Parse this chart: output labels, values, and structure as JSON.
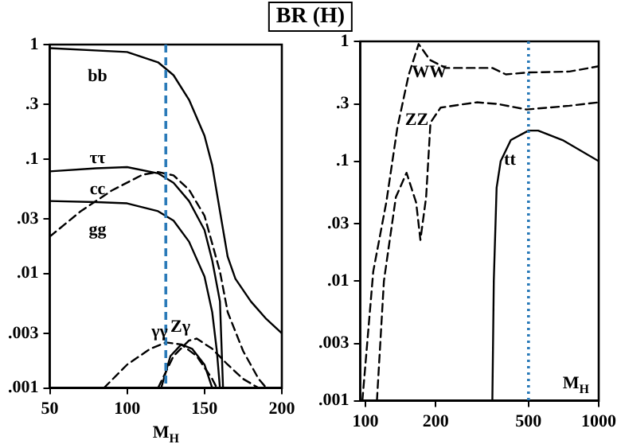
{
  "chart_data": [
    {
      "type": "line",
      "title": "BR (H)",
      "xlabel": "M$_{H}$",
      "log": "y",
      "xlim": [
        50,
        200
      ],
      "xticks": [
        50,
        100,
        150,
        200
      ],
      "ylim": [
        0.001,
        1
      ],
      "yticks": [
        {
          "value": 0.001,
          "label": ".001"
        },
        {
          "value": 0.003,
          "label": ".003"
        },
        {
          "value": 0.01,
          "label": ".01"
        },
        {
          "value": 0.03,
          "label": ".03"
        },
        {
          "value": 0.1,
          "label": ".1"
        },
        {
          "value": 0.3,
          "label": ".3"
        },
        1
      ],
      "ref_lines": [
        {
          "axis": "x",
          "value": 125,
          "color": "#2a7ab8",
          "line_style": "dashed"
        }
      ],
      "series": [
        {
          "name": "bb",
          "color": "#000000",
          "line_style": "solid",
          "x": [
            50,
            100,
            120,
            130,
            140,
            150,
            155,
            160,
            165,
            170,
            180,
            190,
            200
          ],
          "values": [
            0.93,
            0.86,
            0.7,
            0.54,
            0.33,
            0.16,
            0.088,
            0.035,
            0.014,
            0.009,
            0.0057,
            0.004,
            0.003
          ]
        },
        {
          "name": "ττ",
          "color": "#000000",
          "line_style": "solid",
          "x": [
            50,
            80,
            100,
            120,
            130,
            140,
            150,
            155,
            160,
            162
          ],
          "values": [
            0.078,
            0.083,
            0.085,
            0.075,
            0.062,
            0.043,
            0.024,
            0.013,
            0.0057,
            0.001
          ]
        },
        {
          "name": "cc",
          "color": "#000000",
          "line_style": "solid",
          "x": [
            50,
            80,
            100,
            120,
            130,
            140,
            150,
            155,
            158,
            160
          ],
          "values": [
            0.043,
            0.042,
            0.041,
            0.035,
            0.029,
            0.019,
            0.0094,
            0.0046,
            0.0021,
            0.001
          ]
        },
        {
          "name": "gg",
          "color": "#000000",
          "line_style": "dashed",
          "x": [
            50,
            70,
            90,
            110,
            120,
            130,
            140,
            150,
            160,
            165,
            175,
            185,
            190
          ],
          "values": [
            0.021,
            0.035,
            0.053,
            0.073,
            0.077,
            0.072,
            0.054,
            0.032,
            0.0104,
            0.0046,
            0.0021,
            0.0012,
            0.001
          ]
        },
        {
          "name": "γγ",
          "color": "#000000",
          "line_style": "dashed",
          "x": [
            85,
            100,
            115,
            125,
            135,
            145,
            155,
            158
          ],
          "values": [
            0.001,
            0.0016,
            0.0022,
            0.0025,
            0.0024,
            0.0019,
            0.0012,
            0.001
          ]
        },
        {
          "name": "Zγ",
          "color": "#000000",
          "line_style": "dashed",
          "x": [
            120,
            130,
            140,
            145,
            155,
            165,
            175,
            185
          ],
          "values": [
            0.001,
            0.0019,
            0.0026,
            0.0027,
            0.0022,
            0.0016,
            0.0012,
            0.001
          ]
        },
        {
          "color": "#000000",
          "line_style": "solid",
          "x": [
            122,
            128,
            135,
            142,
            150,
            155
          ],
          "values": [
            0.001,
            0.0019,
            0.0024,
            0.0022,
            0.0016,
            0.001
          ]
        }
      ]
    },
    {
      "type": "line",
      "xlabel": "M$_{H}$",
      "log": "xy",
      "xlim": [
        95,
        1000
      ],
      "xticks": [
        100,
        200,
        500,
        1000
      ],
      "ylim": [
        0.001,
        1
      ],
      "yticks": [
        {
          "value": 0.001,
          "label": ".001"
        },
        {
          "value": 0.003,
          "label": ".003"
        },
        {
          "value": 0.01,
          "label": ".01"
        },
        {
          "value": 0.03,
          "label": ".03"
        },
        {
          "value": 0.1,
          "label": ".1"
        },
        {
          "value": 0.3,
          "label": ".3"
        },
        1
      ],
      "ref_lines": [
        {
          "axis": "x",
          "value": 500,
          "color": "#2a7ab8",
          "line_style": "dotted"
        }
      ],
      "series": [
        {
          "name": "WW",
          "color": "#000000",
          "line_style": "dashed",
          "x": [
            97,
            108,
            123,
            137,
            153,
            169,
            189,
            221,
            300,
            350,
            400,
            500,
            750,
            1000
          ],
          "values": [
            0.001,
            0.012,
            0.046,
            0.19,
            0.52,
            0.95,
            0.7,
            0.6,
            0.6,
            0.6,
            0.53,
            0.55,
            0.56,
            0.62
          ]
        },
        {
          "name": "ZZ",
          "color": "#000000",
          "line_style": "dashed",
          "x": [
            112,
            120,
            135,
            150,
            165,
            172,
            182,
            190,
            210,
            300,
            370,
            490,
            750,
            1000
          ],
          "values": [
            0.001,
            0.01,
            0.05,
            0.08,
            0.045,
            0.022,
            0.05,
            0.21,
            0.28,
            0.31,
            0.3,
            0.27,
            0.29,
            0.31
          ]
        },
        {
          "name": "tt",
          "color": "#000000",
          "line_style": "solid",
          "x": [
            350,
            355,
            365,
            380,
            420,
            500,
            550,
            700,
            1000
          ],
          "values": [
            0.001,
            0.01,
            0.06,
            0.1,
            0.15,
            0.18,
            0.18,
            0.15,
            0.1
          ]
        }
      ]
    }
  ]
}
